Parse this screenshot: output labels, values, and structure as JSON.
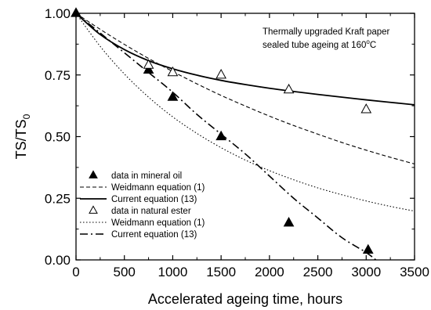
{
  "chart_data": {
    "type": "scatter",
    "title": "",
    "xlabel": "Accelerated ageing time, hours",
    "ylabel_main": "TS/TS",
    "ylabel_sub": "0",
    "xlim": [
      0,
      3500
    ],
    "ylim": [
      0,
      1
    ],
    "x_ticks": [
      0,
      500,
      1000,
      1500,
      2000,
      2500,
      3000,
      3500
    ],
    "x_tick_labels": [
      "0",
      "500",
      "1000",
      "1500",
      "2000",
      "2500",
      "3000",
      "3500"
    ],
    "y_ticks": [
      0,
      0.25,
      0.5,
      0.75,
      1.0
    ],
    "y_tick_labels": [
      "0.00",
      "0.25",
      "0.50",
      "0.75",
      "1.00"
    ],
    "grid": false,
    "legend_position": "bottom-left",
    "annotation": {
      "line1": "Thermally upgraded Kraft paper",
      "line2_main": "sealed tube ageing at 160",
      "line2_degree": "o",
      "line2_unit": "C"
    },
    "series": [
      {
        "name": "data in mineral oil",
        "kind": "markers",
        "marker": "filled-triangle",
        "color": "#000000",
        "x": [
          0,
          750,
          1000,
          1500,
          2200,
          3020
        ],
        "y": [
          1.0,
          0.77,
          0.66,
          0.5,
          0.15,
          0.04
        ]
      },
      {
        "name": "Weidmann equation (1)",
        "kind": "line",
        "style": "dashed",
        "color": "#000000",
        "x": [
          0,
          250,
          500,
          750,
          1000,
          1250,
          1500,
          1750,
          2000,
          2250,
          2500,
          2750,
          3000,
          3250,
          3500
        ],
        "y": [
          1.0,
          0.935,
          0.874,
          0.817,
          0.764,
          0.714,
          0.667,
          0.624,
          0.583,
          0.545,
          0.51,
          0.476,
          0.445,
          0.416,
          0.389
        ]
      },
      {
        "name": "Current equation (13)",
        "kind": "line",
        "style": "solid",
        "color": "#000000",
        "x": [
          0,
          250,
          500,
          750,
          1000,
          1250,
          1500,
          1750,
          2000,
          2250,
          2500,
          2750,
          3000,
          3250,
          3500
        ],
        "y": [
          1.0,
          0.914,
          0.853,
          0.808,
          0.775,
          0.749,
          0.728,
          0.711,
          0.696,
          0.683,
          0.671,
          0.66,
          0.649,
          0.639,
          0.629
        ]
      },
      {
        "name": "data in natural ester",
        "kind": "markers",
        "marker": "open-triangle",
        "color": "#000000",
        "x": [
          750,
          1000,
          1500,
          2200,
          3000
        ],
        "y": [
          0.79,
          0.76,
          0.75,
          0.69,
          0.61
        ]
      },
      {
        "name": "Weidmann equation (1)",
        "kind": "line",
        "style": "dotted",
        "color": "#000000",
        "x": [
          0,
          250,
          500,
          750,
          1000,
          1250,
          1500,
          1750,
          2000,
          2250,
          2500,
          2750,
          3000,
          3250,
          3500
        ],
        "y": [
          1.0,
          0.866,
          0.754,
          0.66,
          0.58,
          0.513,
          0.455,
          0.405,
          0.362,
          0.325,
          0.292,
          0.264,
          0.239,
          0.217,
          0.198
        ]
      },
      {
        "name": "Current equation (13)",
        "kind": "line",
        "style": "dash-dot",
        "color": "#000000",
        "x": [
          0,
          250,
          500,
          750,
          1000,
          1250,
          1500,
          1750,
          2000,
          2250,
          2500,
          2750,
          3000,
          3100
        ],
        "y": [
          1.0,
          0.92,
          0.84,
          0.76,
          0.68,
          0.59,
          0.51,
          0.43,
          0.34,
          0.25,
          0.17,
          0.09,
          0.03,
          0.0
        ]
      }
    ]
  }
}
